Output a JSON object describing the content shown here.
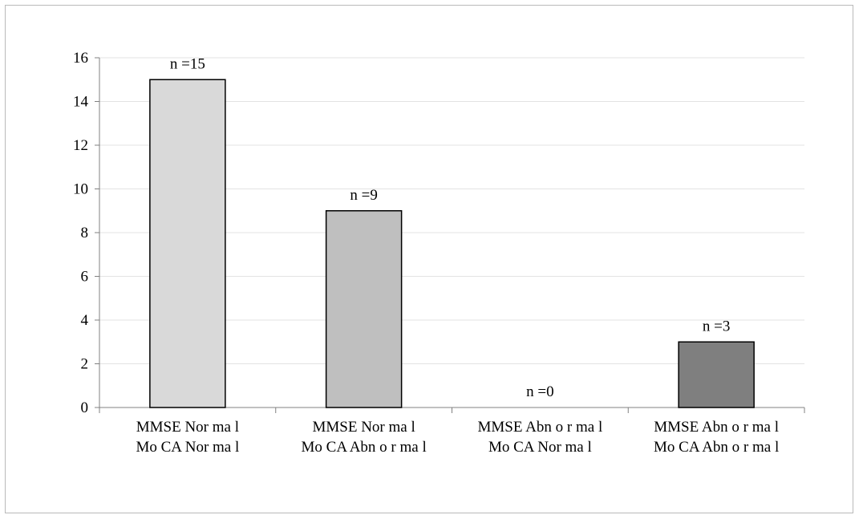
{
  "chart_data": {
    "type": "bar",
    "categories": [
      [
        "MMSE Nor ma l",
        "Mo CA Nor ma l"
      ],
      [
        "MMSE Nor ma l",
        "Mo CA Abn o r ma l"
      ],
      [
        "MMSE Abn o r ma l",
        "Mo CA Nor ma l"
      ],
      [
        "MMSE Abn o r ma l",
        "Mo CA Abn o r ma l"
      ]
    ],
    "values": [
      15,
      9,
      0,
      3
    ],
    "data_labels": [
      "n =15",
      "n =9",
      "n =0",
      "n =3"
    ],
    "bar_colors": [
      "#d9d9d9",
      "#bfbfbf",
      "#a6a6a6",
      "#7f7f7f"
    ],
    "y_ticks": [
      "0",
      "2",
      "4",
      "6",
      "8",
      "10",
      "12",
      "14",
      "16"
    ],
    "ylim": [
      0,
      16
    ],
    "grid": true,
    "legend": "none",
    "title": "",
    "xlabel": "",
    "ylabel": ""
  }
}
